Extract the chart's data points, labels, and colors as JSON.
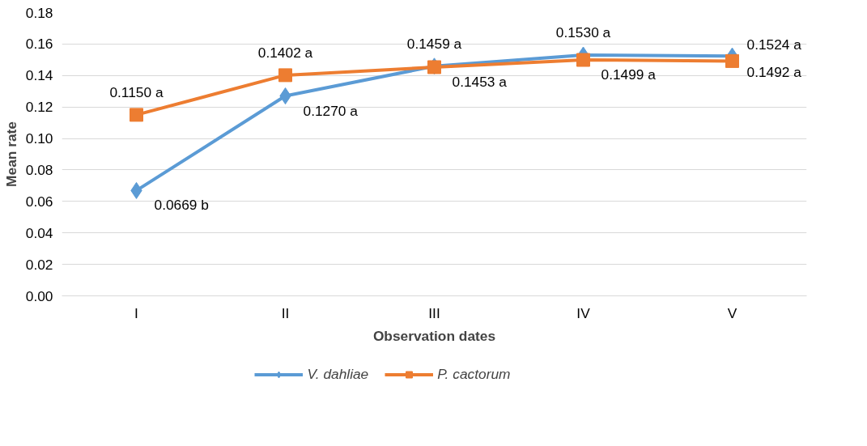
{
  "chart_data": {
    "type": "line",
    "xlabel": "Observation dates",
    "ylabel": "Mean rate",
    "categories": [
      "I",
      "II",
      "III",
      "IV",
      "V"
    ],
    "series": [
      {
        "name": "V. dahliae",
        "color": "#5b9bd5",
        "marker": "diamond",
        "values": [
          0.0669,
          0.127,
          0.1459,
          0.153,
          0.1524
        ],
        "value_labels": [
          "0.0669 b",
          "0.1270 a",
          "0.1459 a",
          "0.1530 a",
          "0.1524 a"
        ]
      },
      {
        "name": "P. cactorum",
        "color": "#ed7d31",
        "marker": "square",
        "values": [
          0.115,
          0.1402,
          0.1453,
          0.1499,
          0.1492
        ],
        "value_labels": [
          "0.1150 a",
          "0.1402 a",
          "0.1453 a",
          "0.1499 a",
          "0.1492 a"
        ]
      }
    ],
    "ylim": [
      0,
      0.18
    ],
    "yticks": [
      {
        "value": 0,
        "label": "0.00"
      },
      {
        "value": 0.02,
        "label": "0.02"
      },
      {
        "value": 0.04,
        "label": "0.04"
      },
      {
        "value": 0.06,
        "label": "0.06"
      },
      {
        "value": 0.08,
        "label": "0.08"
      },
      {
        "value": 0.1,
        "label": "0.10"
      },
      {
        "value": 0.12,
        "label": "0.12"
      },
      {
        "value": 0.14,
        "label": "0.14"
      },
      {
        "value": 0.16,
        "label": "0.16"
      },
      {
        "value": 0.18,
        "label": "0.18"
      }
    ],
    "grid": "y",
    "legend": "bottom",
    "line_style": "solid"
  }
}
